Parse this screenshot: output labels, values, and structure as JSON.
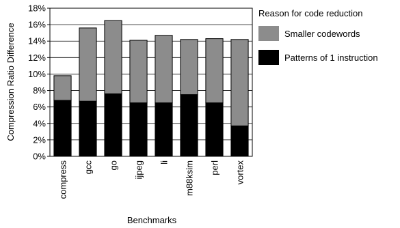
{
  "chart_data": {
    "type": "bar",
    "stacked": true,
    "xlabel": "Benchmarks",
    "ylabel": "Compression Ratio Difference",
    "categories": [
      "compress",
      "gcc",
      "go",
      "ijpeg",
      "li",
      "m88ksim",
      "perl",
      "vortex"
    ],
    "series": [
      {
        "name": "Patterns of 1 instruction",
        "color": "#000000",
        "values": [
          6.8,
          6.7,
          7.6,
          6.5,
          6.5,
          7.5,
          6.5,
          3.7
        ]
      },
      {
        "name": "Smaller codewords",
        "color": "#8c8c8c",
        "values": [
          3.0,
          8.9,
          8.9,
          7.6,
          8.2,
          6.7,
          7.8,
          10.5
        ]
      }
    ],
    "ylim": [
      0,
      18
    ],
    "yticks": [
      "0%",
      "2%",
      "4%",
      "6%",
      "8%",
      "10%",
      "12%",
      "14%",
      "16%",
      "18%"
    ],
    "grid": "horizontal",
    "legend": {
      "title": "Reason for code reduction",
      "position": "right",
      "entries": [
        "Smaller codewords",
        "Patterns of 1 instruction"
      ],
      "colors": [
        "#8c8c8c",
        "#000000"
      ]
    }
  }
}
